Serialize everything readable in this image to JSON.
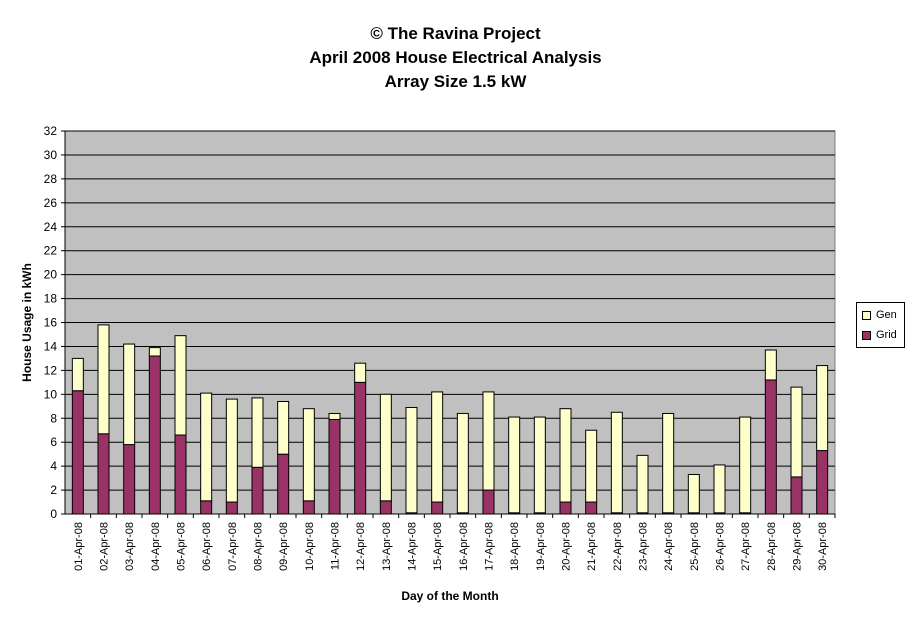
{
  "chart_data": {
    "type": "bar",
    "stacked": true,
    "title": "© The Ravina Project",
    "subtitle_1": "April 2008 House Electrical Analysis",
    "subtitle_2": "Array Size 1.5 kW",
    "xlabel": "Day of the Month",
    "ylabel": "House Usage in kWh",
    "ylim": [
      0,
      32
    ],
    "yticks": [
      "0",
      "2",
      "4",
      "6",
      "8",
      "10",
      "12",
      "14",
      "16",
      "18",
      "20",
      "22",
      "24",
      "26",
      "28",
      "30",
      "32"
    ],
    "grid": true,
    "legend_position": "right",
    "categories": [
      "01-Apr-08",
      "02-Apr-08",
      "03-Apr-08",
      "04-Apr-08",
      "05-Apr-08",
      "06-Apr-08",
      "07-Apr-08",
      "08-Apr-08",
      "09-Apr-08",
      "10-Apr-08",
      "11-Apr-08",
      "12-Apr-08",
      "13-Apr-08",
      "14-Apr-08",
      "15-Apr-08",
      "16-Apr-08",
      "17-Apr-08",
      "18-Apr-08",
      "19-Apr-08",
      "20-Apr-08",
      "21-Apr-08",
      "22-Apr-08",
      "23-Apr-08",
      "24-Apr-08",
      "25-Apr-08",
      "26-Apr-08",
      "27-Apr-08",
      "28-Apr-08",
      "29-Apr-08",
      "30-Apr-08"
    ],
    "series": [
      {
        "name": "Grid",
        "color": "#993366",
        "values": [
          10.3,
          6.7,
          5.8,
          13.2,
          6.6,
          1.1,
          1.0,
          3.9,
          5.0,
          1.1,
          7.9,
          11.0,
          1.1,
          0.1,
          1.0,
          0.1,
          2.0,
          0.1,
          0.1,
          1.0,
          1.0,
          0.1,
          0.1,
          0.1,
          0.1,
          0.1,
          0.1,
          11.2,
          3.1,
          5.3
        ]
      },
      {
        "name": "Gen",
        "color": "#ffffcc",
        "values": [
          2.7,
          9.1,
          8.4,
          0.7,
          8.3,
          9.0,
          8.6,
          5.8,
          4.4,
          7.7,
          0.5,
          1.6,
          8.9,
          8.8,
          9.2,
          8.3,
          8.2,
          8.0,
          8.0,
          7.8,
          6.0,
          8.4,
          4.8,
          8.3,
          3.2,
          4.0,
          8.0,
          2.5,
          7.5,
          7.1
        ]
      }
    ],
    "colors": {
      "plot_background": "#c0c0c0",
      "grid_line": "#000000",
      "border": "#808080"
    }
  }
}
